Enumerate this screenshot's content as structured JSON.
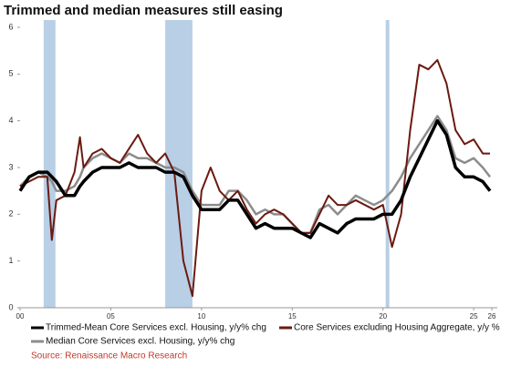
{
  "chart_data": {
    "type": "line",
    "title": "Trimmed and median measures still easing",
    "source": "Source: Renaissance Macro Research",
    "x": [
      2000,
      2000.5,
      2001,
      2001.5,
      2001.75,
      2002,
      2002.5,
      2003,
      2003.3,
      2003.5,
      2004,
      2004.5,
      2005,
      2005.5,
      2006,
      2006.5,
      2007,
      2007.5,
      2008,
      2008.5,
      2009,
      2009.5,
      2010,
      2010.5,
      2011,
      2011.5,
      2012,
      2012.5,
      2013,
      2013.5,
      2014,
      2014.5,
      2015,
      2015.5,
      2016,
      2016.5,
      2017,
      2017.5,
      2018,
      2018.5,
      2019,
      2019.5,
      2020,
      2020.5,
      2021,
      2021.5,
      2022,
      2022.5,
      2023,
      2023.5,
      2024,
      2024.5,
      2025,
      2025.5,
      2025.9
    ],
    "series": [
      {
        "name": "Median Core Services excl. Housing, y/y% chg",
        "color": "#8c8c8c",
        "width": 2.5,
        "values": [
          2.6,
          2.8,
          2.9,
          2.8,
          2.7,
          2.5,
          2.5,
          2.6,
          2.8,
          3.0,
          3.2,
          3.3,
          3.2,
          3.1,
          3.3,
          3.2,
          3.2,
          3.1,
          3.0,
          3.0,
          2.9,
          2.5,
          2.2,
          2.2,
          2.2,
          2.5,
          2.5,
          2.3,
          2.0,
          2.1,
          2.0,
          2.0,
          1.8,
          1.6,
          1.6,
          2.1,
          2.2,
          2.0,
          2.2,
          2.4,
          2.3,
          2.2,
          2.3,
          2.5,
          2.8,
          3.2,
          3.5,
          3.8,
          4.1,
          3.8,
          3.2,
          3.1,
          3.2,
          3.0,
          2.8
        ]
      },
      {
        "name": "Core Services excluding Housing Aggregate, y/y %",
        "color": "#6b1a10",
        "width": 2,
        "values": [
          2.6,
          2.7,
          2.8,
          2.8,
          1.45,
          2.3,
          2.4,
          2.9,
          3.65,
          3.0,
          3.3,
          3.4,
          3.2,
          3.1,
          3.4,
          3.7,
          3.3,
          3.1,
          3.3,
          2.9,
          1.0,
          0.25,
          2.5,
          3.0,
          2.5,
          2.3,
          2.5,
          2.1,
          1.8,
          2.0,
          2.1,
          2.0,
          1.8,
          1.6,
          1.6,
          2.0,
          2.4,
          2.2,
          2.2,
          2.3,
          2.2,
          2.1,
          2.2,
          1.3,
          2.0,
          3.8,
          5.2,
          5.1,
          5.3,
          4.8,
          3.8,
          3.5,
          3.6,
          3.3,
          3.3
        ]
      },
      {
        "name": "Trimmed-Mean Core Services excl. Housing, y/y% chg",
        "color": "#000000",
        "width": 3.5,
        "values": [
          2.5,
          2.8,
          2.9,
          2.9,
          2.8,
          2.7,
          2.4,
          2.4,
          2.6,
          2.7,
          2.9,
          3.0,
          3.0,
          3.0,
          3.1,
          3.0,
          3.0,
          3.0,
          2.9,
          2.9,
          2.8,
          2.4,
          2.1,
          2.1,
          2.1,
          2.3,
          2.3,
          2.0,
          1.7,
          1.8,
          1.7,
          1.7,
          1.7,
          1.6,
          1.5,
          1.8,
          1.7,
          1.6,
          1.8,
          1.9,
          1.9,
          1.9,
          2.0,
          2.0,
          2.3,
          2.8,
          3.2,
          3.6,
          4.0,
          3.7,
          3.0,
          2.8,
          2.8,
          2.7,
          2.5
        ]
      }
    ],
    "shaded_ranges": [
      [
        2001.3,
        2001.95
      ],
      [
        2008.0,
        2009.5
      ],
      [
        2020.15,
        2020.35
      ]
    ],
    "shade_color": "#b8cfe6",
    "xlim": [
      2000,
      2026
    ],
    "xticks": [
      {
        "value": 2000,
        "label": "00"
      },
      {
        "value": 2005,
        "label": "05"
      },
      {
        "value": 2010,
        "label": "10"
      },
      {
        "value": 2015,
        "label": "15"
      },
      {
        "value": 2020,
        "label": "20"
      },
      {
        "value": 2025,
        "label": "25"
      },
      {
        "value": 2026,
        "label": "26"
      }
    ],
    "ylim": [
      0,
      6
    ],
    "yticks": [
      0,
      1,
      2,
      3,
      4,
      5,
      6
    ]
  }
}
